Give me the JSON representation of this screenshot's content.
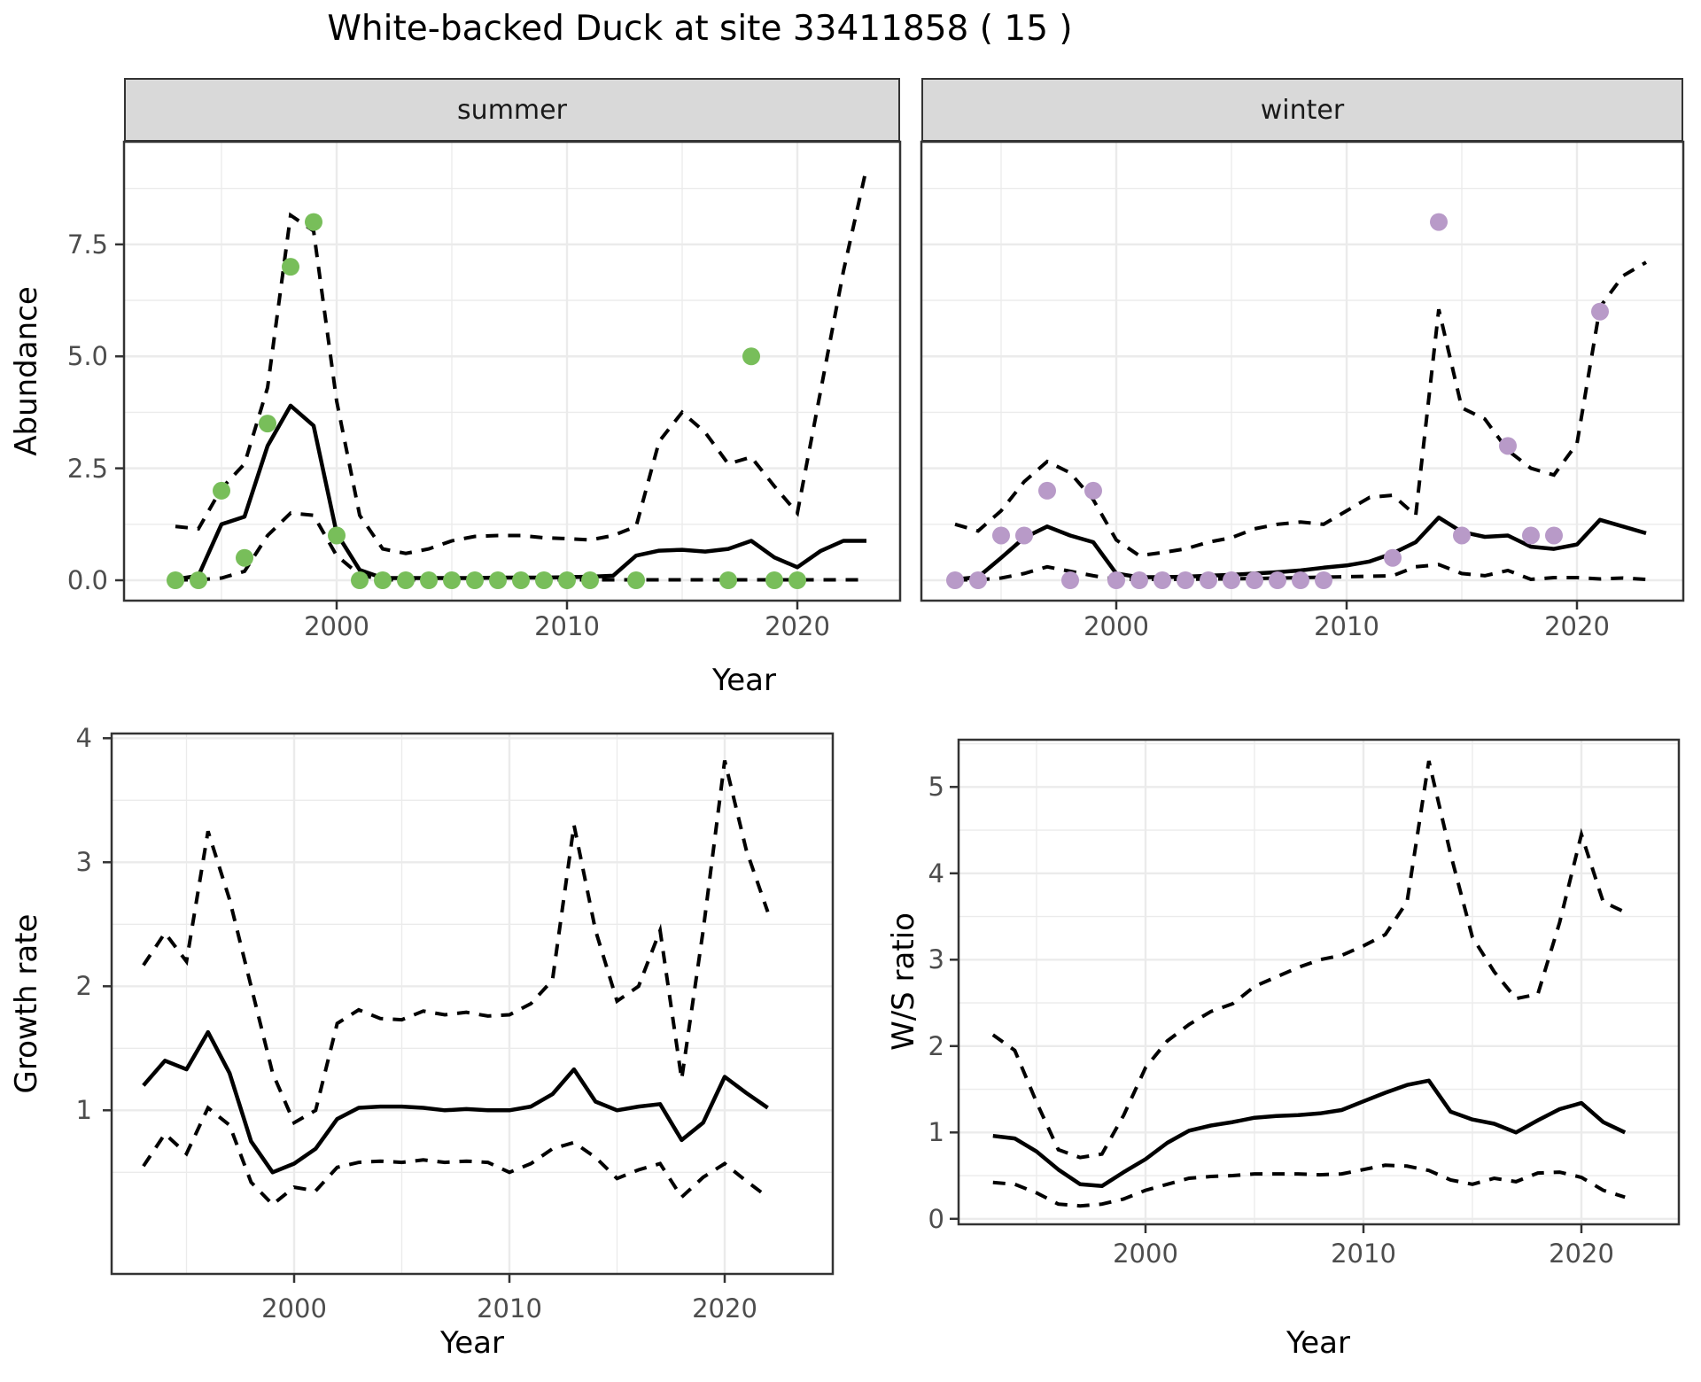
{
  "title": "White-backed Duck at site 33411858 ( 15 )",
  "shared_xlabel": "Year",
  "colors": {
    "summer_point": "#78be5a",
    "winter_point": "#b89ac8",
    "line": "#000000",
    "strip_background": "#d9d9d9",
    "panel_border": "#333333",
    "grid": "#ebebeb",
    "axis_text": "#4d4d4d"
  },
  "chart_data": [
    {
      "id": "abundance-summer",
      "type": "line",
      "facet_label": "summer",
      "ylabel": "Abundance",
      "xlabel": "Year",
      "x_tick_labels": [
        "2000",
        "2010",
        "2020"
      ],
      "x_tick_values": [
        2000,
        2010,
        2020
      ],
      "y_tick_labels": [
        "0.0",
        "2.5",
        "5.0",
        "7.5"
      ],
      "y_tick_values": [
        0,
        2.5,
        5,
        7.5
      ],
      "xlim": [
        1990.8,
        2024.6
      ],
      "ylim": [
        -0.45,
        9.75
      ],
      "years": [
        1993,
        1994,
        1995,
        1996,
        1997,
        1998,
        1999,
        2000,
        2001,
        2002,
        2003,
        2004,
        2005,
        2006,
        2007,
        2008,
        2009,
        2010,
        2011,
        2012,
        2013,
        2014,
        2015,
        2016,
        2017,
        2018,
        2019,
        2020,
        2021,
        2022,
        2023
      ],
      "median": [
        0.02,
        0.1,
        1.25,
        1.42,
        3.0,
        3.9,
        3.45,
        1.05,
        0.23,
        0.05,
        0.05,
        0.05,
        0.05,
        0.05,
        0.06,
        0.06,
        0.06,
        0.07,
        0.08,
        0.1,
        0.55,
        0.66,
        0.68,
        0.64,
        0.7,
        0.88,
        0.51,
        0.29,
        0.65,
        0.88,
        0.88
      ],
      "ci_upper": [
        1.2,
        1.15,
        2.05,
        2.6,
        4.3,
        8.15,
        7.8,
        4.0,
        1.45,
        0.7,
        0.6,
        0.7,
        0.88,
        0.98,
        1.0,
        1.0,
        0.95,
        0.93,
        0.9,
        1.0,
        1.2,
        3.1,
        3.75,
        3.3,
        2.6,
        2.75,
        2.1,
        1.5,
        4.2,
        6.9,
        9.2
      ],
      "ci_lower": [
        0.01,
        0.01,
        0.05,
        0.2,
        1.0,
        1.5,
        1.45,
        0.55,
        0.12,
        0.01,
        0.01,
        0.01,
        0.01,
        0.01,
        0.01,
        0.01,
        0.01,
        0.01,
        0.01,
        0.01,
        0.01,
        0.01,
        0.01,
        0.01,
        0.01,
        0.01,
        0.01,
        0.01,
        0.01,
        0.01,
        0.01
      ],
      "points": {
        "x": [
          1993,
          1994,
          1995,
          1996,
          1997,
          1998,
          1999,
          2000,
          2001,
          2002,
          2003,
          2004,
          2005,
          2006,
          2007,
          2008,
          2009,
          2010,
          2011,
          2013,
          2017,
          2018,
          2019,
          2020
        ],
        "y": [
          0,
          0,
          2,
          0.5,
          3.5,
          7,
          8,
          1,
          0,
          0,
          0,
          0,
          0,
          0,
          0,
          0,
          0,
          0,
          0,
          0,
          0,
          5,
          0,
          0
        ]
      }
    },
    {
      "id": "abundance-winter",
      "type": "line",
      "facet_label": "winter",
      "ylabel": "Abundance",
      "xlabel": "Year",
      "x_tick_labels": [
        "2000",
        "2010",
        "2020"
      ],
      "x_tick_values": [
        2000,
        2010,
        2020
      ],
      "y_tick_labels": [],
      "y_tick_values": [],
      "xlim": [
        1990.8,
        2024.6
      ],
      "ylim": [
        -0.45,
        9.75
      ],
      "years": [
        1993,
        1994,
        1995,
        1996,
        1997,
        1998,
        1999,
        2000,
        2001,
        2002,
        2003,
        2004,
        2005,
        2006,
        2007,
        2008,
        2009,
        2010,
        2011,
        2012,
        2013,
        2014,
        2015,
        2016,
        2017,
        2018,
        2019,
        2020,
        2021,
        2022,
        2023
      ],
      "median": [
        0.02,
        0.07,
        0.5,
        0.95,
        1.2,
        1.0,
        0.85,
        0.15,
        0.07,
        0.07,
        0.08,
        0.1,
        0.12,
        0.15,
        0.18,
        0.22,
        0.28,
        0.33,
        0.42,
        0.6,
        0.85,
        1.4,
        1.08,
        0.97,
        1.0,
        0.75,
        0.7,
        0.8,
        1.35,
        1.2,
        1.05
      ],
      "ci_upper": [
        1.25,
        1.1,
        1.55,
        2.2,
        2.65,
        2.4,
        1.8,
        0.9,
        0.55,
        0.62,
        0.7,
        0.85,
        0.95,
        1.15,
        1.25,
        1.3,
        1.25,
        1.55,
        1.85,
        1.9,
        1.45,
        6.05,
        3.85,
        3.6,
        2.9,
        2.5,
        2.35,
        3.05,
        6.1,
        6.8,
        7.1
      ],
      "ci_lower": [
        0.01,
        0.01,
        0.05,
        0.15,
        0.3,
        0.2,
        0.1,
        0.02,
        0.02,
        0.02,
        0.02,
        0.03,
        0.03,
        0.04,
        0.05,
        0.06,
        0.07,
        0.08,
        0.09,
        0.1,
        0.3,
        0.35,
        0.15,
        0.1,
        0.22,
        0.02,
        0.06,
        0.06,
        0.03,
        0.05,
        0.02
      ],
      "points": {
        "x": [
          1993,
          1994,
          1995,
          1996,
          1997,
          1998,
          1999,
          2000,
          2001,
          2002,
          2003,
          2004,
          2005,
          2006,
          2007,
          2008,
          2009,
          2012,
          2014,
          2015,
          2017,
          2018,
          2019,
          2021
        ],
        "y": [
          0,
          0,
          1,
          1,
          2,
          0,
          2,
          0,
          0,
          0,
          0,
          0,
          0,
          0,
          0,
          0,
          0,
          0.5,
          8,
          1,
          3,
          1,
          1,
          6
        ]
      }
    },
    {
      "id": "growth-rate",
      "type": "line",
      "facet_label": "",
      "ylabel": "Growth rate",
      "xlabel": "Year",
      "x_tick_labels": [
        "2000",
        "2010",
        "2020"
      ],
      "x_tick_values": [
        2000,
        2010,
        2020
      ],
      "y_tick_labels": [
        "1",
        "2",
        "3",
        "4"
      ],
      "y_tick_values": [
        1,
        2,
        3,
        4
      ],
      "xlim": [
        1991.5,
        2025.0
      ],
      "ylim": [
        -0.3,
        4.05
      ],
      "years": [
        1993,
        1994,
        1995,
        1996,
        1997,
        1998,
        1999,
        2000,
        2001,
        2002,
        2003,
        2004,
        2005,
        2006,
        2007,
        2008,
        2009,
        2010,
        2011,
        2012,
        2013,
        2014,
        2015,
        2016,
        2017,
        2018,
        2019,
        2020,
        2021,
        2022
      ],
      "median": [
        1.2,
        1.4,
        1.33,
        1.63,
        1.3,
        0.75,
        0.5,
        0.57,
        0.69,
        0.93,
        1.02,
        1.03,
        1.03,
        1.02,
        1.0,
        1.01,
        1.0,
        1.0,
        1.03,
        1.13,
        1.33,
        1.07,
        1.0,
        1.03,
        1.05,
        0.76,
        0.9,
        1.27,
        1.14,
        1.02
      ],
      "ci_upper": [
        2.17,
        2.43,
        2.2,
        3.25,
        2.7,
        2.0,
        1.3,
        0.9,
        1.0,
        1.7,
        1.81,
        1.74,
        1.73,
        1.8,
        1.77,
        1.79,
        1.76,
        1.77,
        1.86,
        2.05,
        3.3,
        2.45,
        1.88,
        2.0,
        2.45,
        1.25,
        2.45,
        3.82,
        3.1,
        2.6
      ],
      "ci_lower": [
        0.55,
        0.81,
        0.65,
        1.02,
        0.88,
        0.42,
        0.24,
        0.38,
        0.35,
        0.54,
        0.58,
        0.59,
        0.58,
        0.6,
        0.58,
        0.59,
        0.58,
        0.5,
        0.57,
        0.69,
        0.74,
        0.62,
        0.45,
        0.52,
        0.57,
        0.3,
        0.46,
        0.57,
        0.43,
        0.3
      ],
      "points": {
        "x": [],
        "y": []
      }
    },
    {
      "id": "ws-ratio",
      "type": "line",
      "facet_label": "",
      "ylabel": "W/S ratio",
      "xlabel": "Year",
      "x_tick_labels": [
        "2000",
        "2010",
        "2020"
      ],
      "x_tick_values": [
        2000,
        2010,
        2020
      ],
      "y_tick_labels": [
        "0",
        "1",
        "2",
        "3",
        "4",
        "5"
      ],
      "y_tick_values": [
        0,
        1,
        2,
        3,
        4,
        5
      ],
      "xlim": [
        1991.4,
        2024.5
      ],
      "ylim": [
        -0.07,
        5.55
      ],
      "years": [
        1993,
        1994,
        1995,
        1996,
        1997,
        1998,
        1999,
        2000,
        2001,
        2002,
        2003,
        2004,
        2005,
        2006,
        2007,
        2008,
        2009,
        2010,
        2011,
        2012,
        2013,
        2014,
        2015,
        2016,
        2017,
        2018,
        2019,
        2020,
        2021,
        2022
      ],
      "median": [
        0.96,
        0.93,
        0.78,
        0.57,
        0.4,
        0.38,
        0.54,
        0.69,
        0.88,
        1.02,
        1.08,
        1.12,
        1.17,
        1.19,
        1.2,
        1.22,
        1.26,
        1.36,
        1.46,
        1.55,
        1.6,
        1.24,
        1.15,
        1.1,
        1.0,
        1.14,
        1.27,
        1.34,
        1.12,
        1.0
      ],
      "ci_upper": [
        2.13,
        1.95,
        1.35,
        0.8,
        0.71,
        0.75,
        1.2,
        1.75,
        2.06,
        2.25,
        2.4,
        2.49,
        2.69,
        2.8,
        2.91,
        3.0,
        3.05,
        3.16,
        3.29,
        3.67,
        5.3,
        4.22,
        3.26,
        2.86,
        2.55,
        2.6,
        3.43,
        4.45,
        3.67,
        3.55
      ],
      "ci_lower": [
        0.42,
        0.4,
        0.3,
        0.17,
        0.15,
        0.17,
        0.23,
        0.33,
        0.4,
        0.47,
        0.49,
        0.5,
        0.52,
        0.52,
        0.52,
        0.51,
        0.52,
        0.57,
        0.62,
        0.61,
        0.56,
        0.45,
        0.4,
        0.47,
        0.43,
        0.53,
        0.54,
        0.48,
        0.33,
        0.25
      ],
      "points": {
        "x": [],
        "y": []
      }
    }
  ]
}
